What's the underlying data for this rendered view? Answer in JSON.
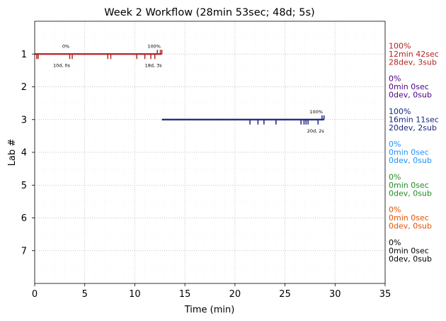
{
  "chart_data": {
    "type": "timeline",
    "title": "Week 2 Workflow (28min 53sec; 48d; 5s)",
    "xlabel": "Time (min)",
    "ylabel": "Lab #",
    "xlim": [
      0,
      35
    ],
    "ylim": [
      8,
      0
    ],
    "x_ticks": [
      0,
      5,
      10,
      15,
      20,
      25,
      30,
      35
    ],
    "y_ticks": [
      1,
      2,
      3,
      4,
      5,
      6,
      7
    ],
    "grid": true,
    "labs": [
      {
        "lab": 1,
        "color": "#b22222",
        "start": 0.0,
        "end": 12.7,
        "dev_ticks": [
          0.2,
          0.35,
          3.5,
          3.75,
          7.3,
          7.6,
          10.2,
          11.0,
          11.6,
          12.0
        ],
        "sub_ticks": [
          12.25,
          12.55,
          12.7
        ],
        "start_pct": "0%",
        "end_pct": "100%",
        "start_count": "10d, 0s",
        "end_count": "18d, 3s",
        "summary": [
          "100%",
          "12min 42sec",
          "28dev, 3sub"
        ]
      },
      {
        "lab": 2,
        "color": "#4b0082",
        "summary": [
          "0%",
          "0min 0sec",
          "0dev, 0sub"
        ]
      },
      {
        "lab": 3,
        "color": "#1a237e",
        "start": 12.7,
        "end": 28.9,
        "dev_ticks": [
          21.5,
          22.3,
          22.9,
          24.1,
          26.6,
          26.9,
          27.1,
          27.3,
          28.3
        ],
        "sub_ticks": [
          28.7,
          28.9
        ],
        "start_pct": "",
        "end_pct": "100%",
        "start_count": "",
        "end_count": "20d, 2s",
        "summary": [
          "100%",
          "16min 11sec",
          "20dev, 2sub"
        ]
      },
      {
        "lab": 4,
        "color": "#1e90ff",
        "summary": [
          "0%",
          "0min 0sec",
          "0dev, 0sub"
        ]
      },
      {
        "lab": 5,
        "color": "#228b22",
        "summary": [
          "0%",
          "0min 0sec",
          "0dev, 0sub"
        ]
      },
      {
        "lab": 6,
        "color": "#e65100",
        "summary": [
          "0%",
          "0min 0sec",
          "0dev, 0sub"
        ]
      },
      {
        "lab": 7,
        "color": "#000000",
        "summary": [
          "0%",
          "0min 0sec",
          "0dev, 0sub"
        ]
      }
    ]
  }
}
